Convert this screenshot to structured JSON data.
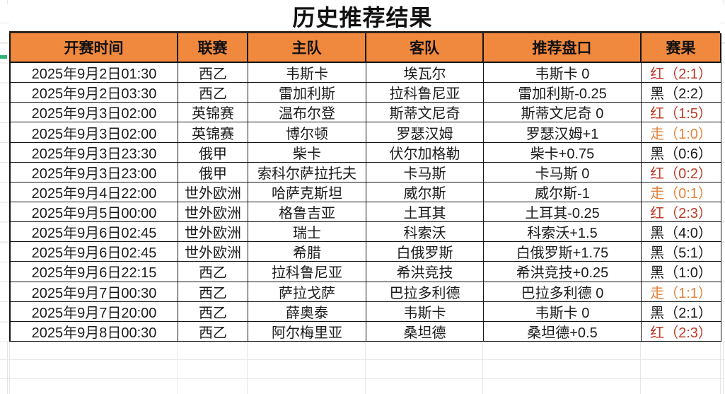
{
  "title": "历史推荐结果",
  "table": {
    "headers": [
      "开赛时间",
      "联赛",
      "主队",
      "客队",
      "推荐盘口",
      "赛果"
    ],
    "rows": [
      {
        "time": "2025年9月2日01:30",
        "league": "西乙",
        "home": "韦斯卡",
        "away": "埃瓦尔",
        "handicap": "韦斯卡 0",
        "result": "红（2:1）",
        "result_type": "red"
      },
      {
        "time": "2025年9月2日03:30",
        "league": "西乙",
        "home": "雷加利斯",
        "away": "拉科鲁尼亚",
        "handicap": "雷加利斯-0.25",
        "result": "黑（2:2）",
        "result_type": "black"
      },
      {
        "time": "2025年9月3日02:00",
        "league": "英锦赛",
        "home": "温布尔登",
        "away": "斯蒂文尼奇",
        "handicap": "斯蒂文尼奇 0",
        "result": "红（1:5）",
        "result_type": "red"
      },
      {
        "time": "2025年9月3日02:00",
        "league": "英锦赛",
        "home": "博尔顿",
        "away": "罗瑟汉姆",
        "handicap": "罗瑟汉姆+1",
        "result": "走（1:0）",
        "result_type": "push"
      },
      {
        "time": "2025年9月3日23:30",
        "league": "俄甲",
        "home": "柴卡",
        "away": "伏尔加格勒",
        "handicap": "柴卡+0.75",
        "result": "黑（0:6）",
        "result_type": "black"
      },
      {
        "time": "2025年9月3日23:00",
        "league": "俄甲",
        "home": "索科尔萨拉托夫",
        "away": "卡马斯",
        "handicap": "卡马斯 0",
        "result": "红（0:2）",
        "result_type": "red"
      },
      {
        "time": "2025年9月4日22:00",
        "league": "世外欧洲",
        "home": "哈萨克斯坦",
        "away": "威尔斯",
        "handicap": "威尔斯-1",
        "result": "走（0:1）",
        "result_type": "push"
      },
      {
        "time": "2025年9月5日00:00",
        "league": "世外欧洲",
        "home": "格鲁吉亚",
        "away": "土耳其",
        "handicap": "土耳其-0.25",
        "result": "红（2:3）",
        "result_type": "red"
      },
      {
        "time": "2025年9月6日02:45",
        "league": "世外欧洲",
        "home": "瑞士",
        "away": "科索沃",
        "handicap": "科索沃+1.5",
        "result": "黑（4:0）",
        "result_type": "black"
      },
      {
        "time": "2025年9月6日02:45",
        "league": "世外欧洲",
        "home": "希腊",
        "away": "白俄罗斯",
        "handicap": "白俄罗斯+1.75",
        "result": "黑（5:1）",
        "result_type": "black"
      },
      {
        "time": "2025年9月6日22:15",
        "league": "西乙",
        "home": "拉科鲁尼亚",
        "away": "希洪竞技",
        "handicap": "希洪竞技+0.25",
        "result": "黑（1:0）",
        "result_type": "black"
      },
      {
        "time": "2025年9月7日00:30",
        "league": "西乙",
        "home": "萨拉戈萨",
        "away": "巴拉多利德",
        "handicap": "巴拉多利德 0",
        "result": "走（1:1）",
        "result_type": "push"
      },
      {
        "time": "2025年9月7日20:00",
        "league": "西乙",
        "home": "薛奥泰",
        "away": "韦斯卡",
        "handicap": "韦斯卡 0",
        "result": "黑（2:1）",
        "result_type": "black"
      },
      {
        "time": "2025年9月8日00:30",
        "league": "西乙",
        "home": "阿尔梅里亚",
        "away": "桑坦德",
        "handicap": "桑坦德+0.5",
        "result": "红（2:3）",
        "result_type": "red"
      }
    ]
  },
  "colors": {
    "header_bg": "#F0883E",
    "result_red": "#BE3B28",
    "result_push": "#E7823A",
    "result_black": "#1B1B1B",
    "table_border": "#141414",
    "top_border": "#30241B",
    "faint_gridline": "#E6E3E5",
    "green_marker": "#2FB375"
  }
}
